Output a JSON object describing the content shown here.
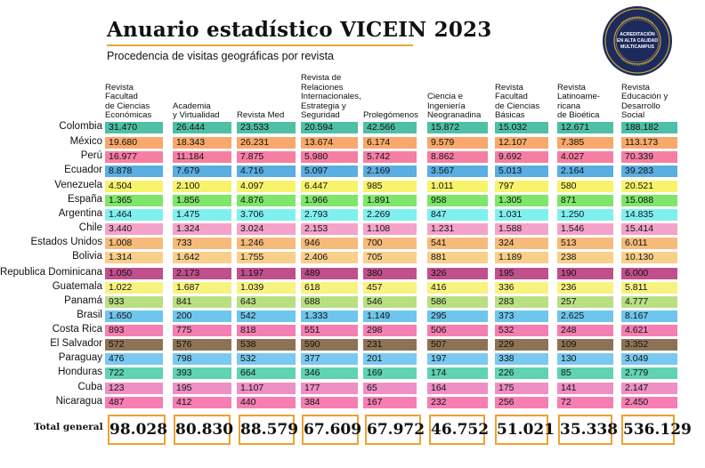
{
  "title": "Anuario estadístico VICEIN 2023",
  "subtitle": "Procedencia de visitas geográficas por revista",
  "seal": {
    "text": "ACREDITACIÓN EN ALTA CALIDAD MULTICAMPUS",
    "ring_text": "UNIVERSIDAD MILITAR NUEVA GRANADA",
    "colors": {
      "navy": "#1c2a5c",
      "gold": "#c9a23a"
    }
  },
  "columns": [
    "Revista Facultad\nde Ciencias\nEconómicas",
    "Academia\ny Virtualidad",
    "Revista Med",
    "Revista de\nRelaciones\n Internacionales,\nEstrategia y\nSeguridad",
    "Prolegómenos",
    "Ciencia e\nIngeniería\nNeogranadina",
    "Revista\nFacultad\nde Ciencias\nBásicas",
    "Revista\nLatinoame-\nricana\nde Bioética",
    "Revista\nEducación y\nDesarrollo\nSocial"
  ],
  "rows": [
    {
      "country": "Colombia",
      "color": "#4fbfa6",
      "values": [
        "31.470",
        "26.444",
        "23.533",
        "20.594",
        "42.566",
        "15.872",
        "15.032",
        "12.671",
        "188.182"
      ]
    },
    {
      "country": "México",
      "color": "#f7a86a",
      "values": [
        "19.680",
        "18.343",
        "26.231",
        "13.674",
        "6.174",
        "9.579",
        "12.107",
        "7.385",
        "113.173"
      ]
    },
    {
      "country": "Perú",
      "color": "#f57fa3",
      "values": [
        "16.977",
        "11.184",
        "7.875",
        "5.980",
        "5.742",
        "8.862",
        "9.692",
        "4.027",
        "70.339"
      ]
    },
    {
      "country": "Ecuador",
      "color": "#5aaee0",
      "values": [
        "8.878",
        "7.679",
        "4.716",
        "5.097",
        "2.169",
        "3.567",
        "5.013",
        "2.164",
        "39.283"
      ]
    },
    {
      "country": "Venezuela",
      "color": "#f7f36b",
      "values": [
        "4.504",
        "2.100",
        "4.097",
        "6.447",
        "985",
        "1.011",
        "797",
        "580",
        "20.521"
      ]
    },
    {
      "country": "España",
      "color": "#7ee66a",
      "values": [
        "1.365",
        "1.856",
        "4.876",
        "1.966",
        "1.891",
        "958",
        "1.305",
        "871",
        "15.088"
      ]
    },
    {
      "country": "Argentina",
      "color": "#7ff0f0",
      "values": [
        "1.464",
        "1.475",
        "3.706",
        "2.793",
        "2.269",
        "847",
        "1.031",
        "1.250",
        "14.835"
      ]
    },
    {
      "country": "Chile",
      "color": "#f5a3c9",
      "values": [
        "3.440",
        "1.324",
        "3.024",
        "2.153",
        "1.108",
        "1.231",
        "1.588",
        "1.546",
        "15.414"
      ]
    },
    {
      "country": "Estados Unidos",
      "color": "#f6bb7a",
      "values": [
        "1.008",
        "733",
        "1.246",
        "946",
        "700",
        "541",
        "324",
        "513",
        "6.011"
      ]
    },
    {
      "country": "Bolivia",
      "color": "#f9cf8a",
      "values": [
        "1.314",
        "1.642",
        "1.755",
        "2.406",
        "705",
        "881",
        "1.189",
        "238",
        "10.130"
      ]
    },
    {
      "country": "Republica Dominicana",
      "color": "#c0508c",
      "values": [
        "1.050",
        "2.173",
        "1.197",
        "489",
        "380",
        "326",
        "195",
        "190",
        "6.000"
      ]
    },
    {
      "country": "Guatemala",
      "color": "#f8f280",
      "values": [
        "1.022",
        "1.687",
        "1.039",
        "618",
        "457",
        "416",
        "336",
        "236",
        "5.811"
      ]
    },
    {
      "country": "Panamá",
      "color": "#b9df83",
      "values": [
        "933",
        "841",
        "643",
        "688",
        "546",
        "586",
        "283",
        "257",
        "4.777"
      ]
    },
    {
      "country": "Brasil",
      "color": "#6ec6ec",
      "values": [
        "1.650",
        "200",
        "542",
        "1.333",
        "1.149",
        "295",
        "373",
        "2.625",
        "8.167"
      ]
    },
    {
      "country": "Costa Rica",
      "color": "#f47fb2",
      "values": [
        "893",
        "775",
        "818",
        "551",
        "298",
        "506",
        "532",
        "248",
        "4.621"
      ]
    },
    {
      "country": "El Salvador",
      "color": "#8e7255",
      "values": [
        "572",
        "576",
        "538",
        "590",
        "231",
        "507",
        "229",
        "109",
        "3.352"
      ]
    },
    {
      "country": "Paraguay",
      "color": "#79c9f0",
      "values": [
        "476",
        "798",
        "532",
        "377",
        "201",
        "197",
        "338",
        "130",
        "3.049"
      ]
    },
    {
      "country": "Honduras",
      "color": "#5fd3b2",
      "values": [
        "722",
        "393",
        "664",
        "346",
        "169",
        "174",
        "226",
        "85",
        "2.779"
      ]
    },
    {
      "country": "Cuba",
      "color": "#ee8fc6",
      "values": [
        "123",
        "195",
        "1.107",
        "177",
        "65",
        "164",
        "175",
        "141",
        "2.147"
      ]
    },
    {
      "country": "Nicaragua",
      "color": "#f67eb3",
      "values": [
        "487",
        "412",
        "440",
        "384",
        "167",
        "232",
        "256",
        "72",
        "2.450"
      ]
    }
  ],
  "total_label": "Total general",
  "totals": [
    "98.028",
    "80.830",
    "88.579",
    "67.609",
    "67.972",
    "46.752",
    "51.021",
    "35.338",
    "536.129"
  ],
  "colors": {
    "total_border": "#f0a030",
    "title_line": "#e8a53a",
    "text": "#111111"
  }
}
